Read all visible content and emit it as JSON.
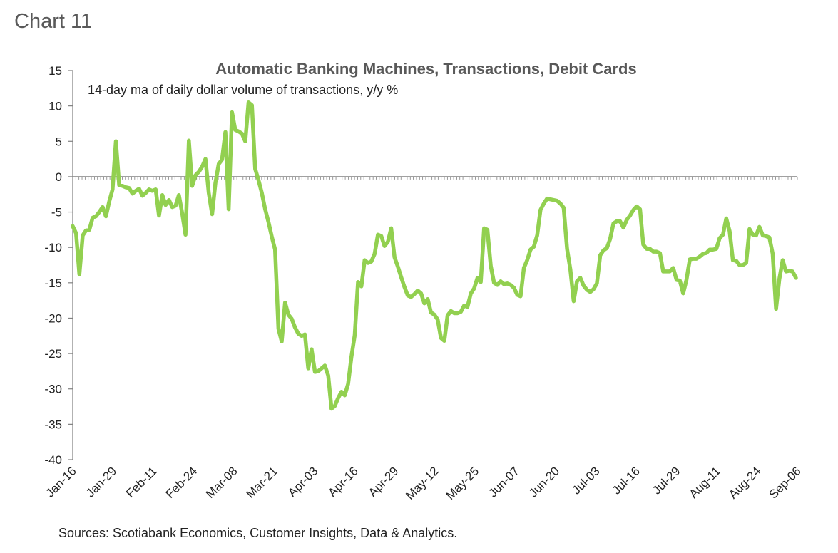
{
  "label": "Chart 11",
  "chart_data": {
    "type": "line",
    "title": "Automatic Banking Machines, Transactions, Debit Cards",
    "subtitle": "14-day ma of daily dollar volume of transactions, y/y %",
    "source": "Sources: Scotiabank Economics, Customer Insights, Data & Analytics.",
    "ylim": [
      -40,
      15
    ],
    "yticks": [
      15,
      10,
      5,
      0,
      -5,
      -10,
      -15,
      -20,
      -25,
      -30,
      -35,
      -40
    ],
    "xlim": [
      "Jan-16",
      "Sep-07"
    ],
    "xticks": [
      "Jan-16",
      "Jan-29",
      "Feb-11",
      "Feb-24",
      "Mar-08",
      "Mar-21",
      "Apr-03",
      "Apr-16",
      "Apr-29",
      "May-12",
      "May-25",
      "Jun-07",
      "Jun-20",
      "Jul-03",
      "Jul-16",
      "Jul-29",
      "Aug-11",
      "Aug-24",
      "Sep-06"
    ],
    "series": [
      {
        "color": "#92d050",
        "values": [
          -7,
          -8,
          -13.8,
          -8.3,
          -7.6,
          -7.5,
          -5.8,
          -5.6,
          -5,
          -4.3,
          -5.6,
          -3.5,
          -1.8,
          5,
          -1.2,
          -1.3,
          -1.5,
          -1.6,
          -2.4,
          -2,
          -1.7,
          -2.7,
          -2.3,
          -1.8,
          -2,
          -1.8,
          -5.5,
          -2.6,
          -4,
          -3.3,
          -4.3,
          -4.1,
          -2.6,
          -5.2,
          -8.2,
          5.1,
          -1.3,
          0.2,
          0.7,
          1.4,
          2.5,
          -2.3,
          -5.3,
          -0.9,
          1.8,
          2.4,
          6.3,
          -4.6,
          9.1,
          6.6,
          6.4,
          6.1,
          5,
          10.5,
          10.1,
          1.1,
          -0.5,
          -2.3,
          -4.6,
          -6.4,
          -8.5,
          -10.3,
          -21.5,
          -23.3,
          -17.8,
          -19.5,
          -20.1,
          -21.3,
          -22.2,
          -22.5,
          -22.3,
          -27.1,
          -24.4,
          -27.6,
          -27.5,
          -27.1,
          -26.7,
          -28.1,
          -32.8,
          -32.4,
          -31.3,
          -30.4,
          -30.9,
          -29.3,
          -25.5,
          -22.4,
          -14.9,
          -15.5,
          -11.8,
          -12.2,
          -12,
          -10.9,
          -8.2,
          -8.4,
          -9.8,
          -9.2,
          -7.3,
          -11.4,
          -12.7,
          -14.2,
          -15.6,
          -16.8,
          -17,
          -16.6,
          -16.1,
          -16.5,
          -17.9,
          -17.3,
          -19.2,
          -19.5,
          -20.2,
          -22.8,
          -23.2,
          -19.6,
          -19,
          -19.3,
          -19.3,
          -19.1,
          -18.2,
          -18.4,
          -16.5,
          -15.8,
          -14.3,
          -14.9,
          -7.3,
          -7.5,
          -12.6,
          -15,
          -15.3,
          -14.8,
          -15.2,
          -15.1,
          -15.3,
          -15.7,
          -16.7,
          -16.9,
          -12.9,
          -11.8,
          -10.3,
          -9.9,
          -8.3,
          -4.7,
          -3.8,
          -3.1,
          -3.2,
          -3.3,
          -3.4,
          -3.8,
          -4.4,
          -10.2,
          -13.1,
          -17.6,
          -14.8,
          -14.3,
          -15.4,
          -16,
          -16.3,
          -15.9,
          -15.1,
          -11.1,
          -10.4,
          -10.1,
          -8.8,
          -6.6,
          -6.3,
          -6.3,
          -7.2,
          -6.1,
          -5.5,
          -4.7,
          -4.2,
          -4.6,
          -9.6,
          -10.2,
          -10.2,
          -10.6,
          -10.6,
          -10.8,
          -13.4,
          -13.4,
          -13.4,
          -12.9,
          -14.6,
          -14.7,
          -16.5,
          -14.6,
          -11.7,
          -11.6,
          -11.6,
          -11.3,
          -10.9,
          -10.8,
          -10.3,
          -10.3,
          -10.2,
          -8.7,
          -8.2,
          -5.9,
          -7.7,
          -11.8,
          -11.9,
          -12.5,
          -12.5,
          -12.2,
          -7.4,
          -8.2,
          -8.3,
          -7.1,
          -8.3,
          -8.4,
          -8.6,
          -10.9,
          -18.7,
          -14.5,
          -11.8,
          -13.4,
          -13.3,
          -13.4,
          -14.3
        ]
      }
    ]
  }
}
